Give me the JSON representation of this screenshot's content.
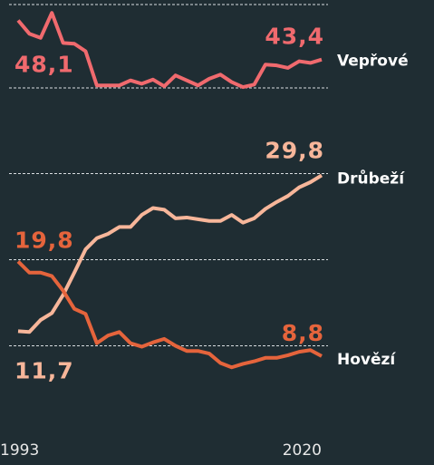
{
  "chart_data": [
    {
      "type": "line",
      "x": [
        1993,
        1994,
        1995,
        1996,
        1997,
        1998,
        1999,
        2000,
        2001,
        2002,
        2003,
        2004,
        2005,
        2006,
        2007,
        2008,
        2009,
        2010,
        2011,
        2012,
        2013,
        2014,
        2015,
        2016,
        2017,
        2018,
        2019,
        2020
      ],
      "xlim": [
        1993,
        2020
      ],
      "ylim": [
        40,
        50
      ],
      "yticks": [
        40,
        50
      ],
      "grid": true,
      "series": [
        {
          "name": "Vepřové",
          "color": "#f06a6e",
          "values": [
            48.1,
            46.5,
            46,
            49,
            45.4,
            45.3,
            44.4,
            40.3,
            40.3,
            40.3,
            40.9,
            40.5,
            41,
            40.2,
            41.5,
            40.9,
            40.3,
            41.1,
            41.6,
            40.7,
            40.1,
            40.4,
            42.8,
            42.7,
            42.4,
            43.2,
            43,
            43.4
          ],
          "value_labels": [
            "48,1",
            null,
            null,
            null,
            null,
            null,
            null,
            null,
            null,
            null,
            null,
            null,
            null,
            null,
            null,
            null,
            null,
            null,
            null,
            null,
            null,
            null,
            null,
            null,
            null,
            null,
            null,
            "43,4"
          ]
        }
      ]
    },
    {
      "type": "line",
      "x": [
        1993,
        1994,
        1995,
        1996,
        1997,
        1998,
        1999,
        2000,
        2001,
        2002,
        2003,
        2004,
        2005,
        2006,
        2007,
        2008,
        2009,
        2010,
        2011,
        2012,
        2013,
        2014,
        2015,
        2016,
        2017,
        2018,
        2019,
        2020
      ],
      "xlim": [
        1993,
        2020
      ],
      "xticks": [
        1993,
        2020
      ],
      "ylim": [
        0,
        30
      ],
      "yticks": [
        10,
        20,
        30
      ],
      "grid": true,
      "series": [
        {
          "name": "Drůbeží",
          "color": "#f7b69a",
          "values": [
            11.7,
            11.6,
            13,
            13.8,
            15.9,
            18.5,
            21.2,
            22.5,
            23,
            23.8,
            23.8,
            25.2,
            26,
            25.8,
            24.8,
            24.9,
            24.7,
            24.5,
            24.5,
            25.2,
            24.3,
            24.8,
            25.9,
            26.7,
            27.4,
            28.4,
            29,
            29.8
          ],
          "value_labels": [
            "11,7",
            null,
            null,
            null,
            null,
            null,
            null,
            null,
            null,
            null,
            null,
            null,
            null,
            null,
            null,
            null,
            null,
            null,
            null,
            null,
            null,
            null,
            null,
            null,
            null,
            null,
            null,
            "29,8"
          ]
        },
        {
          "name": "Hovězí",
          "color": "#e5643c",
          "values": [
            19.8,
            18.5,
            18.5,
            18.1,
            16.4,
            14.3,
            13.7,
            10.3,
            11.2,
            11.6,
            10.3,
            9.9,
            10.4,
            10.8,
            10,
            9.4,
            9.4,
            9.1,
            8,
            7.5,
            7.9,
            8.2,
            8.6,
            8.6,
            8.9,
            9.3,
            9.5,
            8.8
          ],
          "value_labels": [
            "19,8",
            null,
            null,
            null,
            null,
            null,
            null,
            null,
            null,
            null,
            null,
            null,
            null,
            null,
            null,
            null,
            null,
            null,
            null,
            null,
            null,
            null,
            null,
            null,
            null,
            null,
            null,
            "8,8"
          ]
        }
      ]
    }
  ]
}
